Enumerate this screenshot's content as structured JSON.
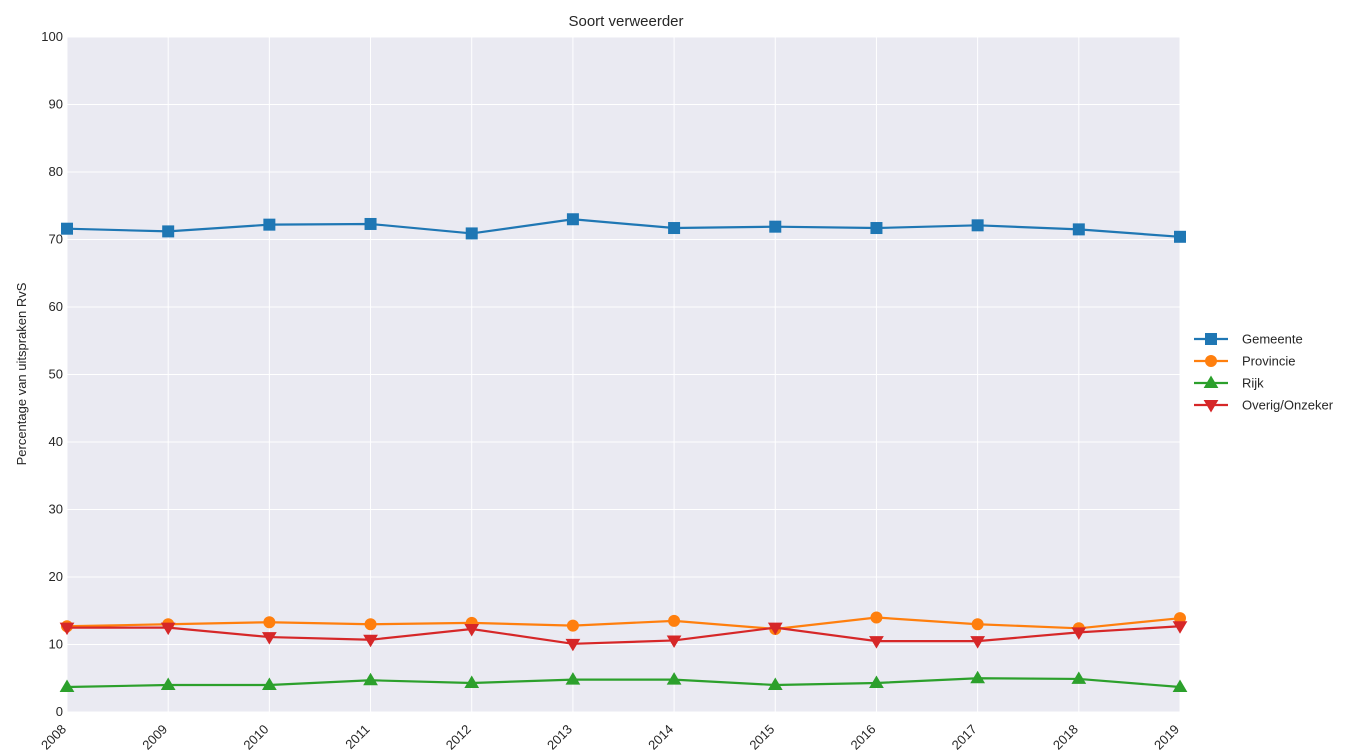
{
  "chart_data": {
    "type": "line",
    "title": "Soort verweerder",
    "xlabel": "",
    "ylabel": "Percentage van uitspraken RvS",
    "x": [
      "2008",
      "2009",
      "2010",
      "2011",
      "2012",
      "2013",
      "2014",
      "2015",
      "2016",
      "2017",
      "2018",
      "2019"
    ],
    "ylim": [
      0,
      100
    ],
    "yticks": [
      "0",
      "10",
      "20",
      "30",
      "40",
      "50",
      "60",
      "70",
      "80",
      "90",
      "100"
    ],
    "grid": true,
    "legend_placement": "right",
    "series": [
      {
        "name": "Gemeente",
        "color": "#1f77b4",
        "marker": "square",
        "values": [
          71.6,
          71.2,
          72.2,
          72.3,
          70.9,
          73.0,
          71.7,
          71.9,
          71.7,
          72.1,
          71.5,
          70.4
        ]
      },
      {
        "name": "Provincie",
        "color": "#ff7f0e",
        "marker": "circle",
        "values": [
          12.7,
          13.0,
          13.3,
          13.0,
          13.2,
          12.8,
          13.5,
          12.3,
          14.0,
          13.0,
          12.4,
          13.9
        ]
      },
      {
        "name": "Rijk",
        "color": "#2ca02c",
        "marker": "triangle-up",
        "values": [
          3.7,
          4.0,
          4.0,
          4.7,
          4.3,
          4.8,
          4.8,
          4.0,
          4.3,
          5.0,
          4.9,
          3.7
        ]
      },
      {
        "name": "Overig/Onzeker",
        "color": "#d62728",
        "marker": "triangle-down",
        "values": [
          12.5,
          12.5,
          11.1,
          10.7,
          12.3,
          10.1,
          10.6,
          12.5,
          10.5,
          10.5,
          11.8,
          12.7
        ]
      }
    ],
    "plot_background": "#eaeaf2",
    "grid_color": "#ffffff"
  }
}
